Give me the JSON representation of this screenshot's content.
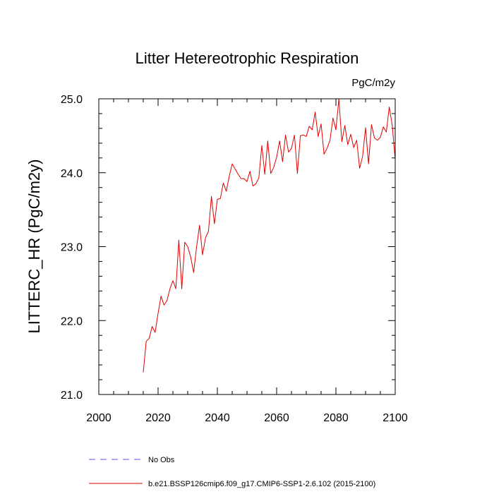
{
  "chart_data": {
    "type": "line",
    "title": "Litter Hetereotrophic Respiration",
    "units": "PgC/m2y",
    "xlabel": "",
    "ylabel": "LITTERC_HR  (PgC/m2y)",
    "xlim": [
      2000,
      2100
    ],
    "ylim": [
      21.0,
      25.0
    ],
    "x_major_ticks": [
      2000,
      2020,
      2040,
      2060,
      2080,
      2100
    ],
    "x_tick_labels": [
      "2000",
      "2020",
      "2040",
      "2060",
      "2080",
      "2100"
    ],
    "y_major_ticks": [
      21.0,
      22.0,
      23.0,
      24.0,
      25.0
    ],
    "y_tick_labels": [
      "21.0",
      "22.0",
      "23.0",
      "24.0",
      "25.0"
    ],
    "grid": false,
    "colors": {
      "model": "#e00000",
      "obs": "#5555ee",
      "axis": "#000000"
    },
    "series": [
      {
        "name": "b.e21.BSSP126cmip6.f09_g17.CMIP6-SSP1-2.6.102 (2015-2100)",
        "style": "solid",
        "x": [
          2015,
          2016,
          2017,
          2018,
          2019,
          2020,
          2021,
          2022,
          2023,
          2024,
          2025,
          2026,
          2027,
          2028,
          2029,
          2030,
          2031,
          2032,
          2033,
          2034,
          2035,
          2036,
          2037,
          2038,
          2039,
          2040,
          2041,
          2042,
          2043,
          2044,
          2045,
          2046,
          2047,
          2048,
          2049,
          2050,
          2051,
          2052,
          2053,
          2054,
          2055,
          2056,
          2057,
          2058,
          2059,
          2060,
          2061,
          2062,
          2063,
          2064,
          2065,
          2066,
          2067,
          2068,
          2069,
          2070,
          2071,
          2072,
          2073,
          2074,
          2075,
          2076,
          2077,
          2078,
          2079,
          2080,
          2081,
          2082,
          2083,
          2084,
          2085,
          2086,
          2087,
          2088,
          2089,
          2090,
          2091,
          2092,
          2093,
          2094,
          2095,
          2096,
          2097,
          2098,
          2099,
          2100
        ],
        "values": [
          21.3,
          21.72,
          21.76,
          21.92,
          21.84,
          22.1,
          22.33,
          22.21,
          22.27,
          22.43,
          22.54,
          22.43,
          23.09,
          22.43,
          23.06,
          23.0,
          22.86,
          22.65,
          23.0,
          23.29,
          22.89,
          23.12,
          23.21,
          23.68,
          23.31,
          23.64,
          23.65,
          23.86,
          23.75,
          23.95,
          24.12,
          24.05,
          23.98,
          23.92,
          23.92,
          23.88,
          24.02,
          23.82,
          23.85,
          23.93,
          24.37,
          23.98,
          24.43,
          23.99,
          24.07,
          24.21,
          24.43,
          24.15,
          24.51,
          24.28,
          24.33,
          24.51,
          23.99,
          24.5,
          24.51,
          24.49,
          24.63,
          24.58,
          24.82,
          24.49,
          24.66,
          24.25,
          24.33,
          24.44,
          24.74,
          24.58,
          25.0,
          24.42,
          24.64,
          24.38,
          24.52,
          24.34,
          24.44,
          24.06,
          24.22,
          24.61,
          24.12,
          24.65,
          24.47,
          24.44,
          24.48,
          24.62,
          24.55,
          24.89,
          24.64,
          24.18
        ]
      },
      {
        "name": "No Obs",
        "style": "dashed",
        "x": [],
        "values": []
      }
    ]
  }
}
